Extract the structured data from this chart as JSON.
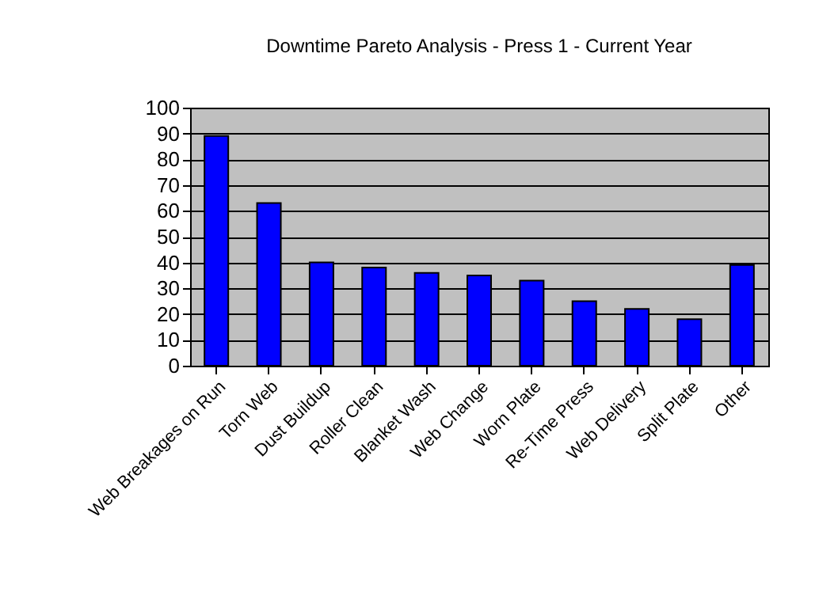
{
  "chart_data": {
    "type": "bar",
    "title": "Downtime Pareto Analysis - Press 1 - Current Year",
    "categories": [
      "Web Breakages on Run",
      "Torn Web",
      "Dust Buildup",
      "Roller Clean",
      "Blanket Wash",
      "Web Change",
      "Worn Plate",
      "Re-Time Press",
      "Web Delivery",
      "Split Plate",
      "Other"
    ],
    "values": [
      89,
      63,
      40,
      38,
      36,
      35,
      33,
      25,
      22,
      18,
      39
    ],
    "color": "#0000ff",
    "ylim": [
      0,
      100
    ],
    "yticks": [
      0,
      10,
      20,
      30,
      40,
      50,
      60,
      70,
      80,
      90,
      100
    ],
    "grid": "y"
  }
}
